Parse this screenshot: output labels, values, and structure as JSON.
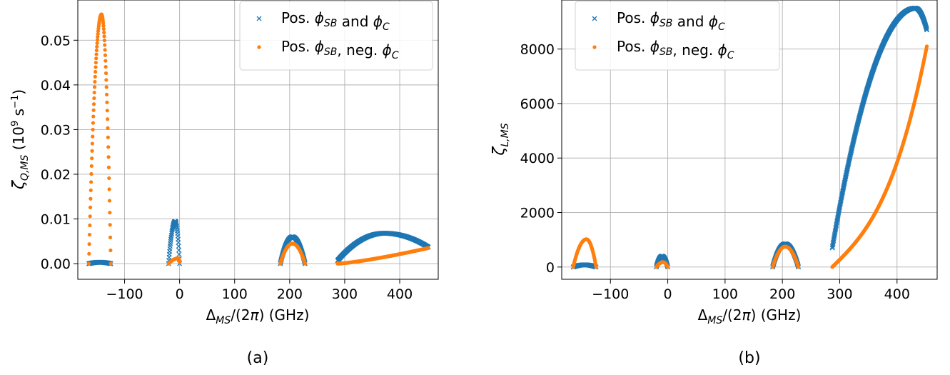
{
  "chart_data": [
    {
      "type": "scatter",
      "caption": "(a)",
      "ylabel": "ζQ,MS (10⁹ s⁻¹)",
      "xlabel": "ΔMS/(2π) (GHz)",
      "xlim": [
        -185,
        470
      ],
      "ylim": [
        -0.0035,
        0.059
      ],
      "xticks": [
        -100,
        0,
        100,
        200,
        300,
        400
      ],
      "xtick_labels": [
        "−100",
        "0",
        "100",
        "200",
        "300",
        "400"
      ],
      "yticks": [
        0.0,
        0.01,
        0.02,
        0.03,
        0.04,
        0.05
      ],
      "ytick_labels": [
        "0.00",
        "0.01",
        "0.02",
        "0.03",
        "0.04",
        "0.05"
      ],
      "grid": true,
      "legend": "upper right",
      "series": [
        {
          "name": "Pos. ϕSB and ϕC",
          "marker": "x",
          "color": "#1f77b4",
          "segments": [
            {
              "x0": -165,
              "x1": -125,
              "peak_x": -145,
              "peak": 0.0003,
              "start": 0.0,
              "end": 0.0
            },
            {
              "x0": -20,
              "x1": 0,
              "peak_x": -8,
              "peak": 0.0095,
              "start": 0.0,
              "end": 0.0
            },
            {
              "x0": 183,
              "x1": 228,
              "peak_x": 205,
              "peak": 0.006,
              "start": 0.0,
              "end": 0.0
            },
            {
              "x0": 287,
              "x1": 452,
              "peak_x": 372,
              "peak": 0.0068,
              "start": 0.0007,
              "end": 0.0037
            }
          ]
        },
        {
          "name": "Pos. ϕSB, neg. ϕC",
          "marker": "o",
          "color": "#ff7f0e",
          "segments": [
            {
              "x0": -165,
              "x1": -125,
              "peak_x": -142,
              "peak": 0.0558,
              "start": 0.0,
              "end": 0.0
            },
            {
              "x0": -20,
              "x1": 0,
              "peak_x": -2,
              "peak": 0.0012,
              "start": 0.0,
              "end": 0.0004
            },
            {
              "x0": 183,
              "x1": 228,
              "peak_x": 205,
              "peak": 0.0045,
              "start": 0.0,
              "end": 0.0
            },
            {
              "x0": 287,
              "x1": 452,
              "shape": "rise",
              "start": 0.0,
              "end": 0.0035
            }
          ]
        }
      ]
    },
    {
      "type": "scatter",
      "caption": "(b)",
      "ylabel": "ζL,MS",
      "xlabel": "ΔMS/(2π) (GHz)",
      "xlim": [
        -185,
        470
      ],
      "ylim": [
        -450,
        9800
      ],
      "xticks": [
        -100,
        0,
        100,
        200,
        300,
        400
      ],
      "xtick_labels": [
        "−100",
        "0",
        "100",
        "200",
        "300",
        "400"
      ],
      "yticks": [
        0,
        2000,
        4000,
        6000,
        8000
      ],
      "ytick_labels": [
        "0",
        "2000",
        "4000",
        "6000",
        "8000"
      ],
      "grid": true,
      "legend": "upper left",
      "series": [
        {
          "name": "Pos. ϕSB and ϕC",
          "marker": "x",
          "color": "#1f77b4",
          "segments": [
            {
              "x0": -165,
              "x1": -125,
              "peak_x": -145,
              "peak": 80,
              "start": 0,
              "end": 0
            },
            {
              "x0": -20,
              "x1": 0,
              "peak_x": -10,
              "peak": 400,
              "start": 0,
              "end": 0
            },
            {
              "x0": 183,
              "x1": 228,
              "peak_x": 205,
              "peak": 850,
              "start": 0,
              "end": 0
            },
            {
              "x0": 287,
              "x1": 452,
              "shape": "concave",
              "peak_x": 432,
              "peak": 9500,
              "start": 700,
              "end": 8700
            }
          ]
        },
        {
          "name": "Pos. ϕSB, neg. ϕC",
          "marker": "o",
          "color": "#ff7f0e",
          "segments": [
            {
              "x0": -165,
              "x1": -125,
              "peak_x": -142,
              "peak": 1020,
              "start": 0,
              "end": 0
            },
            {
              "x0": -20,
              "x1": 0,
              "peak_x": -8,
              "peak": 180,
              "start": 0,
              "end": 0
            },
            {
              "x0": 183,
              "x1": 228,
              "peak_x": 205,
              "peak": 750,
              "start": 0,
              "end": 0
            },
            {
              "x0": 287,
              "x1": 452,
              "shape": "convex",
              "start": 0,
              "end": 8100
            }
          ]
        }
      ]
    }
  ]
}
